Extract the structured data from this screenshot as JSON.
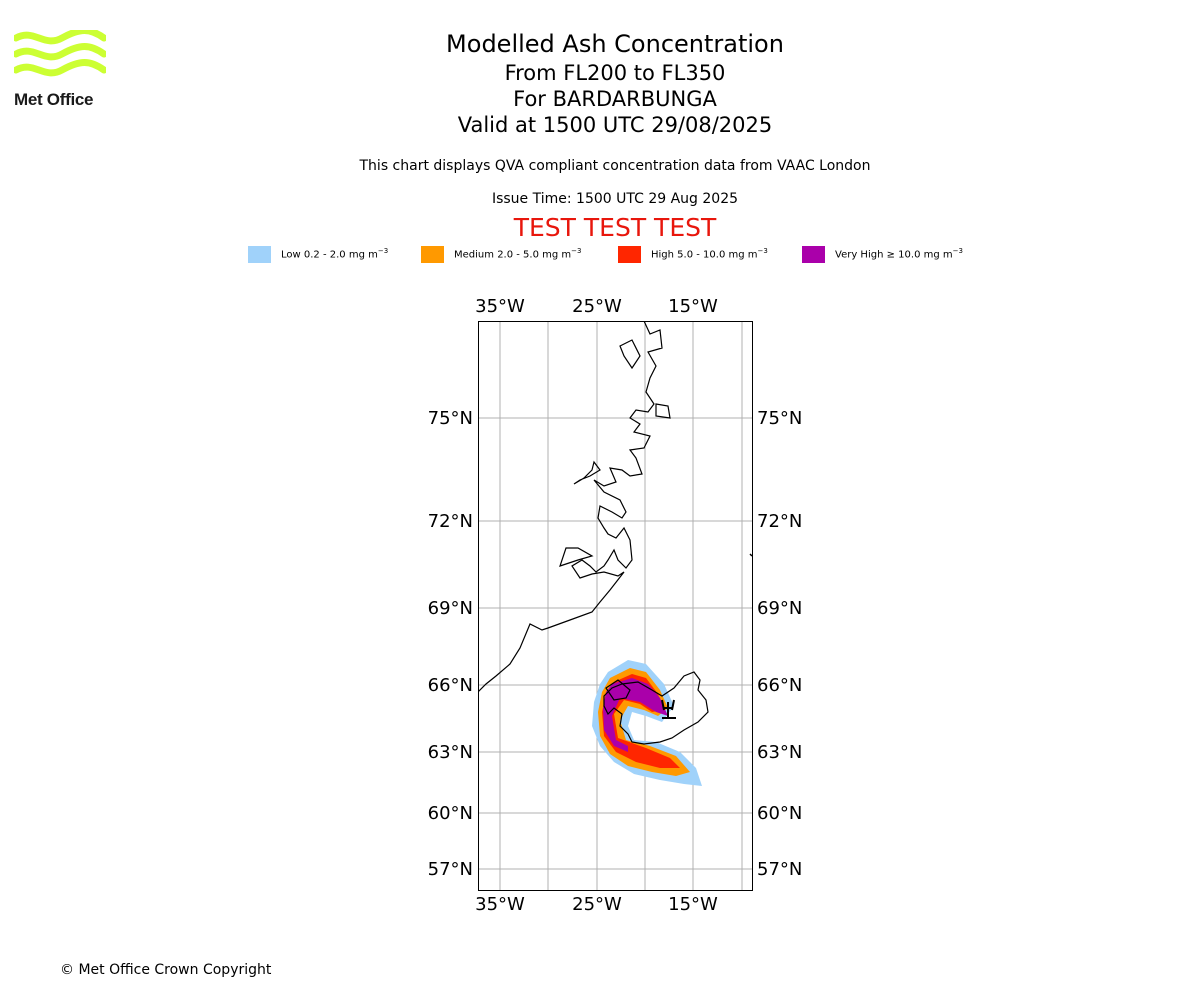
{
  "logo": {
    "text": "Met Office",
    "color": "#ccff33"
  },
  "header": {
    "title": "Modelled Ash Concentration",
    "levels": "From FL200 to FL350",
    "volcano": "For BARDARBUNGA",
    "valid": "Valid at 1500 UTC 29/08/2025",
    "description": "This chart displays QVA compliant concentration data from VAAC London",
    "issue_time": "Issue Time: 1500 UTC 29 Aug 2025",
    "test_banner": "TEST TEST TEST",
    "test_color": "#e8160c"
  },
  "legend": [
    {
      "name": "Low",
      "range": "0.2 - 2.0 mg m",
      "unit_exp": "−3",
      "color": "#a0d2fa"
    },
    {
      "name": "Medium",
      "range": "2.0 - 5.0 mg m",
      "unit_exp": "−3",
      "color": "#ff9900"
    },
    {
      "name": "High",
      "range": "5.0 - 10.0 mg m",
      "unit_exp": "−3",
      "color": "#ff2600"
    },
    {
      "name": "Very High",
      "range": "≥  10.0 mg m",
      "unit_exp": "−3",
      "color": "#aa00aa"
    }
  ],
  "map": {
    "lon_ticks_top": [
      "35°W",
      "25°W",
      "15°W"
    ],
    "lon_ticks_bottom": [
      "35°W",
      "25°W",
      "15°W"
    ],
    "lat_ticks_left": [
      "75°N",
      "72°N",
      "69°N",
      "66°N",
      "63°N",
      "60°N",
      "57°N"
    ],
    "lat_ticks_right": [
      "75°N",
      "72°N",
      "69°N",
      "66°N",
      "63°N",
      "60°N",
      "57°N"
    ],
    "gridlines": true
  },
  "footer": {
    "copyright": "© Met Office Crown Copyright"
  }
}
